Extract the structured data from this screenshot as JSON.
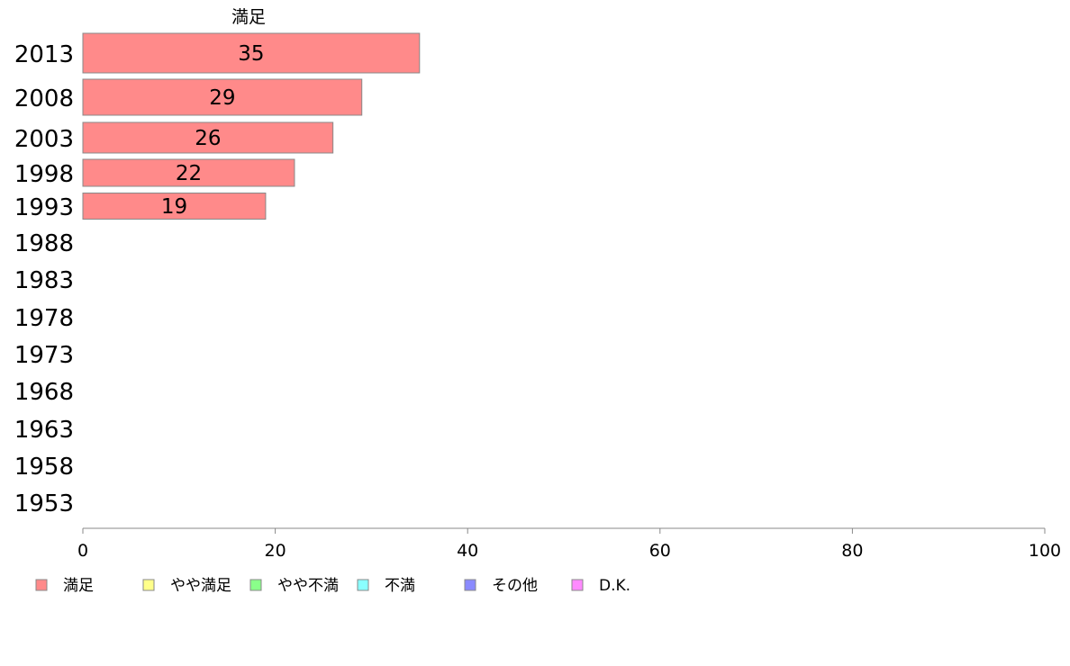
{
  "chart_data": {
    "type": "bar",
    "orientation": "horizontal",
    "header_label": "満足",
    "categories": [
      "2013",
      "2008",
      "2003",
      "1998",
      "1993",
      "1988",
      "1983",
      "1978",
      "1973",
      "1968",
      "1963",
      "1958",
      "1953"
    ],
    "series": [
      {
        "name": "満足",
        "color": "#ff8a8a",
        "values": [
          35,
          29,
          26,
          22,
          19,
          null,
          null,
          null,
          null,
          null,
          null,
          null,
          null
        ]
      }
    ],
    "xlim": [
      0,
      100
    ],
    "xticks": [
      0,
      20,
      40,
      60,
      80,
      100
    ],
    "grid": false,
    "legend_position": "bottom-left",
    "legend": [
      {
        "label": "満足",
        "color": "#ff8a8a"
      },
      {
        "label": "やや満足",
        "color": "#ffff8a"
      },
      {
        "label": "やや不満",
        "color": "#8aff8a"
      },
      {
        "label": "不満",
        "color": "#8affff"
      },
      {
        "label": "その他",
        "color": "#8a8aff"
      },
      {
        "label": "D.K.",
        "color": "#ff8aff"
      }
    ]
  }
}
